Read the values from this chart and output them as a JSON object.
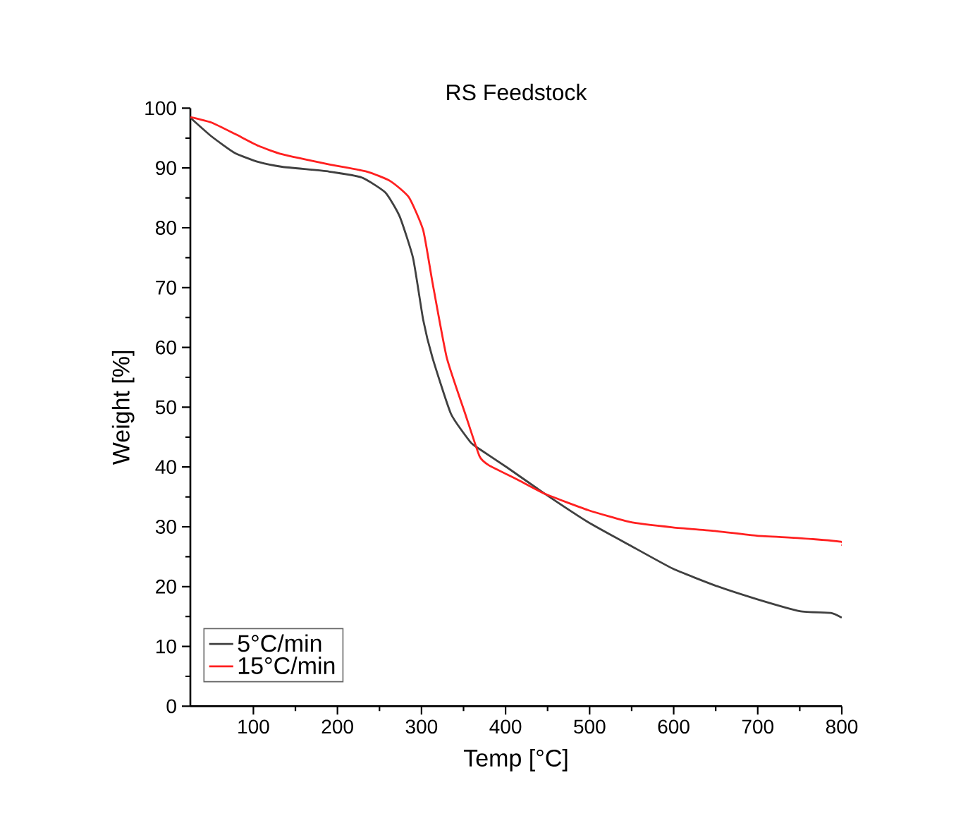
{
  "chart_data": {
    "type": "line",
    "title": "RS Feedstock",
    "xlabel": "Temp [°C]",
    "ylabel": "Weight [%]",
    "xlim": [
      25,
      800
    ],
    "ylim": [
      0,
      100
    ],
    "xticks": [
      100,
      200,
      300,
      400,
      500,
      600,
      700,
      800
    ],
    "yticks": [
      0,
      10,
      20,
      30,
      40,
      50,
      60,
      70,
      80,
      90,
      100
    ],
    "grid": false,
    "legend": "bottom left",
    "marker": "none",
    "line_style": "solid",
    "series": [
      {
        "name": "5°C/min",
        "color": "#404040",
        "x": [
          25,
          50,
          78,
          106,
          134,
          190,
          229,
          257,
          274,
          290,
          302,
          313,
          335,
          358,
          369,
          402,
          447,
          498,
          548,
          599,
          649,
          699,
          750,
          787,
          800
        ],
        "values": [
          98.4,
          95.3,
          92.5,
          91.0,
          90.2,
          89.4,
          88.4,
          85.9,
          81.9,
          74.9,
          64.6,
          58.3,
          48.9,
          44.2,
          43.0,
          39.9,
          35.5,
          30.8,
          26.9,
          23.0,
          20.2,
          17.9,
          15.9,
          15.6,
          14.8
        ]
      },
      {
        "name": "15°C/min",
        "color": "#ff2020",
        "x": [
          25,
          50,
          78,
          106,
          134,
          190,
          235,
          263,
          285,
          302,
          313,
          330,
          352,
          369,
          380,
          414,
          447,
          498,
          548,
          599,
          649,
          699,
          750,
          799,
          800
        ],
        "values": [
          98.5,
          97.6,
          95.7,
          93.7,
          92.3,
          90.6,
          89.4,
          87.8,
          85.1,
          79.6,
          70.9,
          58.3,
          48.9,
          41.8,
          40.3,
          37.9,
          35.5,
          32.8,
          30.8,
          29.9,
          29.3,
          28.5,
          28.1,
          27.5,
          26.8
        ]
      }
    ]
  }
}
